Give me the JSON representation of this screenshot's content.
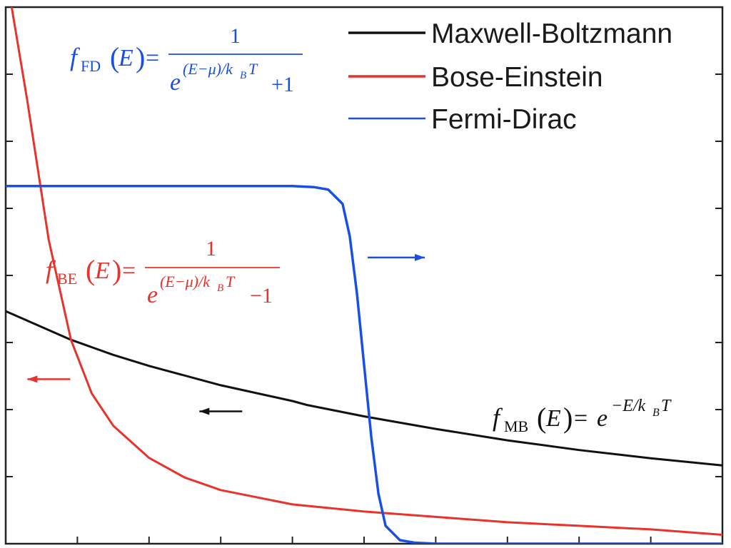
{
  "chart_data": {
    "type": "line",
    "title": "",
    "xlabel": "",
    "ylabel": "",
    "xlim": [
      0,
      10
    ],
    "ylim": [
      0,
      1.5
    ],
    "grid": false,
    "legend_placement": "top-right",
    "series": [
      {
        "name": "Maxwell-Boltzmann",
        "color": "#111111",
        "x": [
          0,
          0.91,
          1.5,
          2,
          3,
          4,
          4.2,
          5,
          6,
          7,
          8,
          9,
          10
        ],
        "y": [
          0.65,
          0.57,
          0.528,
          0.497,
          0.443,
          0.399,
          0.388,
          0.356,
          0.321,
          0.289,
          0.262,
          0.239,
          0.219
        ]
      },
      {
        "name": "Bose-Einstein",
        "color": "#e8322b",
        "x": [
          0,
          0.3,
          0.6,
          0.91,
          1.2,
          1.5,
          2,
          2.5,
          3,
          4,
          5,
          6,
          7,
          8,
          9,
          10
        ],
        "y": [
          1.6,
          1.24,
          0.85,
          0.57,
          0.42,
          0.33,
          0.24,
          0.185,
          0.15,
          0.11,
          0.09,
          0.075,
          0.06,
          0.05,
          0.04,
          0.025
        ]
      },
      {
        "name": "Fermi-Dirac",
        "color": "#1a4fe6",
        "x": [
          0,
          3,
          4,
          4.3,
          4.5,
          4.7,
          4.8,
          4.9,
          5.0,
          5.1,
          5.2,
          5.3,
          5.5,
          5.7,
          6,
          7,
          8,
          9,
          10
        ],
        "y": [
          1.0,
          1.0,
          1.0,
          0.997,
          0.99,
          0.95,
          0.86,
          0.7,
          0.5,
          0.3,
          0.14,
          0.05,
          0.01,
          0.003,
          0,
          0,
          0,
          0,
          0
        ]
      }
    ],
    "annotations": {
      "fd": {
        "f": "f",
        "sub": "FD",
        "arg": "E",
        "num": "1",
        "e": "e",
        "exp": "(E−μ)/k",
        "expsub": "B",
        "expT": "T",
        "tail": "+1"
      },
      "be": {
        "f": "f",
        "sub": "BE",
        "arg": "E",
        "num": "1",
        "e": "e",
        "exp": "(E−μ)/k",
        "expsub": "B",
        "expT": "T",
        "tail": "−1"
      },
      "mb": {
        "f": "f",
        "sub": "MB",
        "arg": "E",
        "e": "e",
        "exp": "−E/k",
        "expsub": "B",
        "expT": "T"
      }
    },
    "arrows": [
      {
        "series": "Fermi-Dirac",
        "direction": "right"
      },
      {
        "series": "Bose-Einstein",
        "direction": "left"
      },
      {
        "series": "Maxwell-Boltzmann",
        "direction": "left"
      }
    ]
  }
}
